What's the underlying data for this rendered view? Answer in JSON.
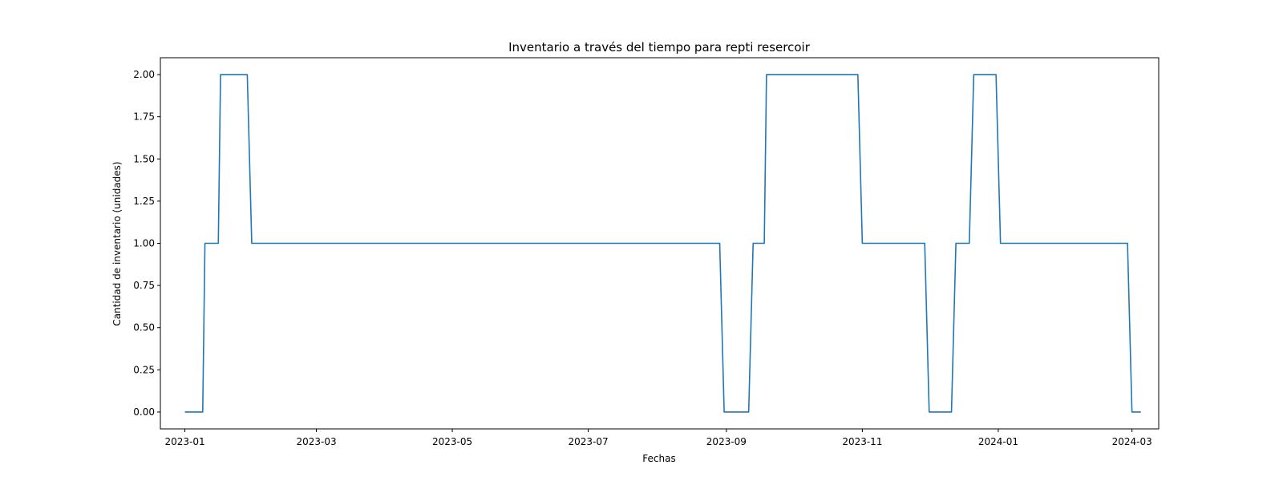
{
  "chart_data": {
    "type": "line",
    "title": "Inventario a través del tiempo para  repti resercoir",
    "xlabel": "Fechas",
    "ylabel": "Cantidad de inventario (unidades)",
    "x_axis_type": "date",
    "xlim": [
      "2022-12-21",
      "2024-03-13"
    ],
    "ylim": [
      -0.1,
      2.1
    ],
    "x_ticks": [
      "2023-01",
      "2023-03",
      "2023-05",
      "2023-07",
      "2023-09",
      "2023-11",
      "2024-01",
      "2024-03"
    ],
    "y_ticks": [
      "0.00",
      "0.25",
      "0.50",
      "0.75",
      "1.00",
      "1.25",
      "1.50",
      "1.75",
      "2.00"
    ],
    "grid": false,
    "line_color": "#1f77b4",
    "series": [
      {
        "x": [
          "2023-01-01",
          "2023-01-09",
          "2023-01-10",
          "2023-01-16",
          "2023-01-17",
          "2023-01-29",
          "2023-01-31",
          "2023-08-29",
          "2023-08-31",
          "2023-09-11",
          "2023-09-13",
          "2023-09-18",
          "2023-09-19",
          "2023-10-30",
          "2023-11-01",
          "2023-11-29",
          "2023-12-01",
          "2023-12-11",
          "2023-12-13",
          "2023-12-19",
          "2023-12-21",
          "2023-12-31",
          "2024-01-02",
          "2024-02-28",
          "2024-03-01",
          "2024-03-05"
        ],
        "y": [
          0,
          0,
          1,
          1,
          2,
          2,
          1,
          1,
          0,
          0,
          1,
          1,
          2,
          2,
          1,
          1,
          0,
          0,
          1,
          1,
          2,
          2,
          1,
          1,
          0,
          0
        ]
      }
    ]
  }
}
